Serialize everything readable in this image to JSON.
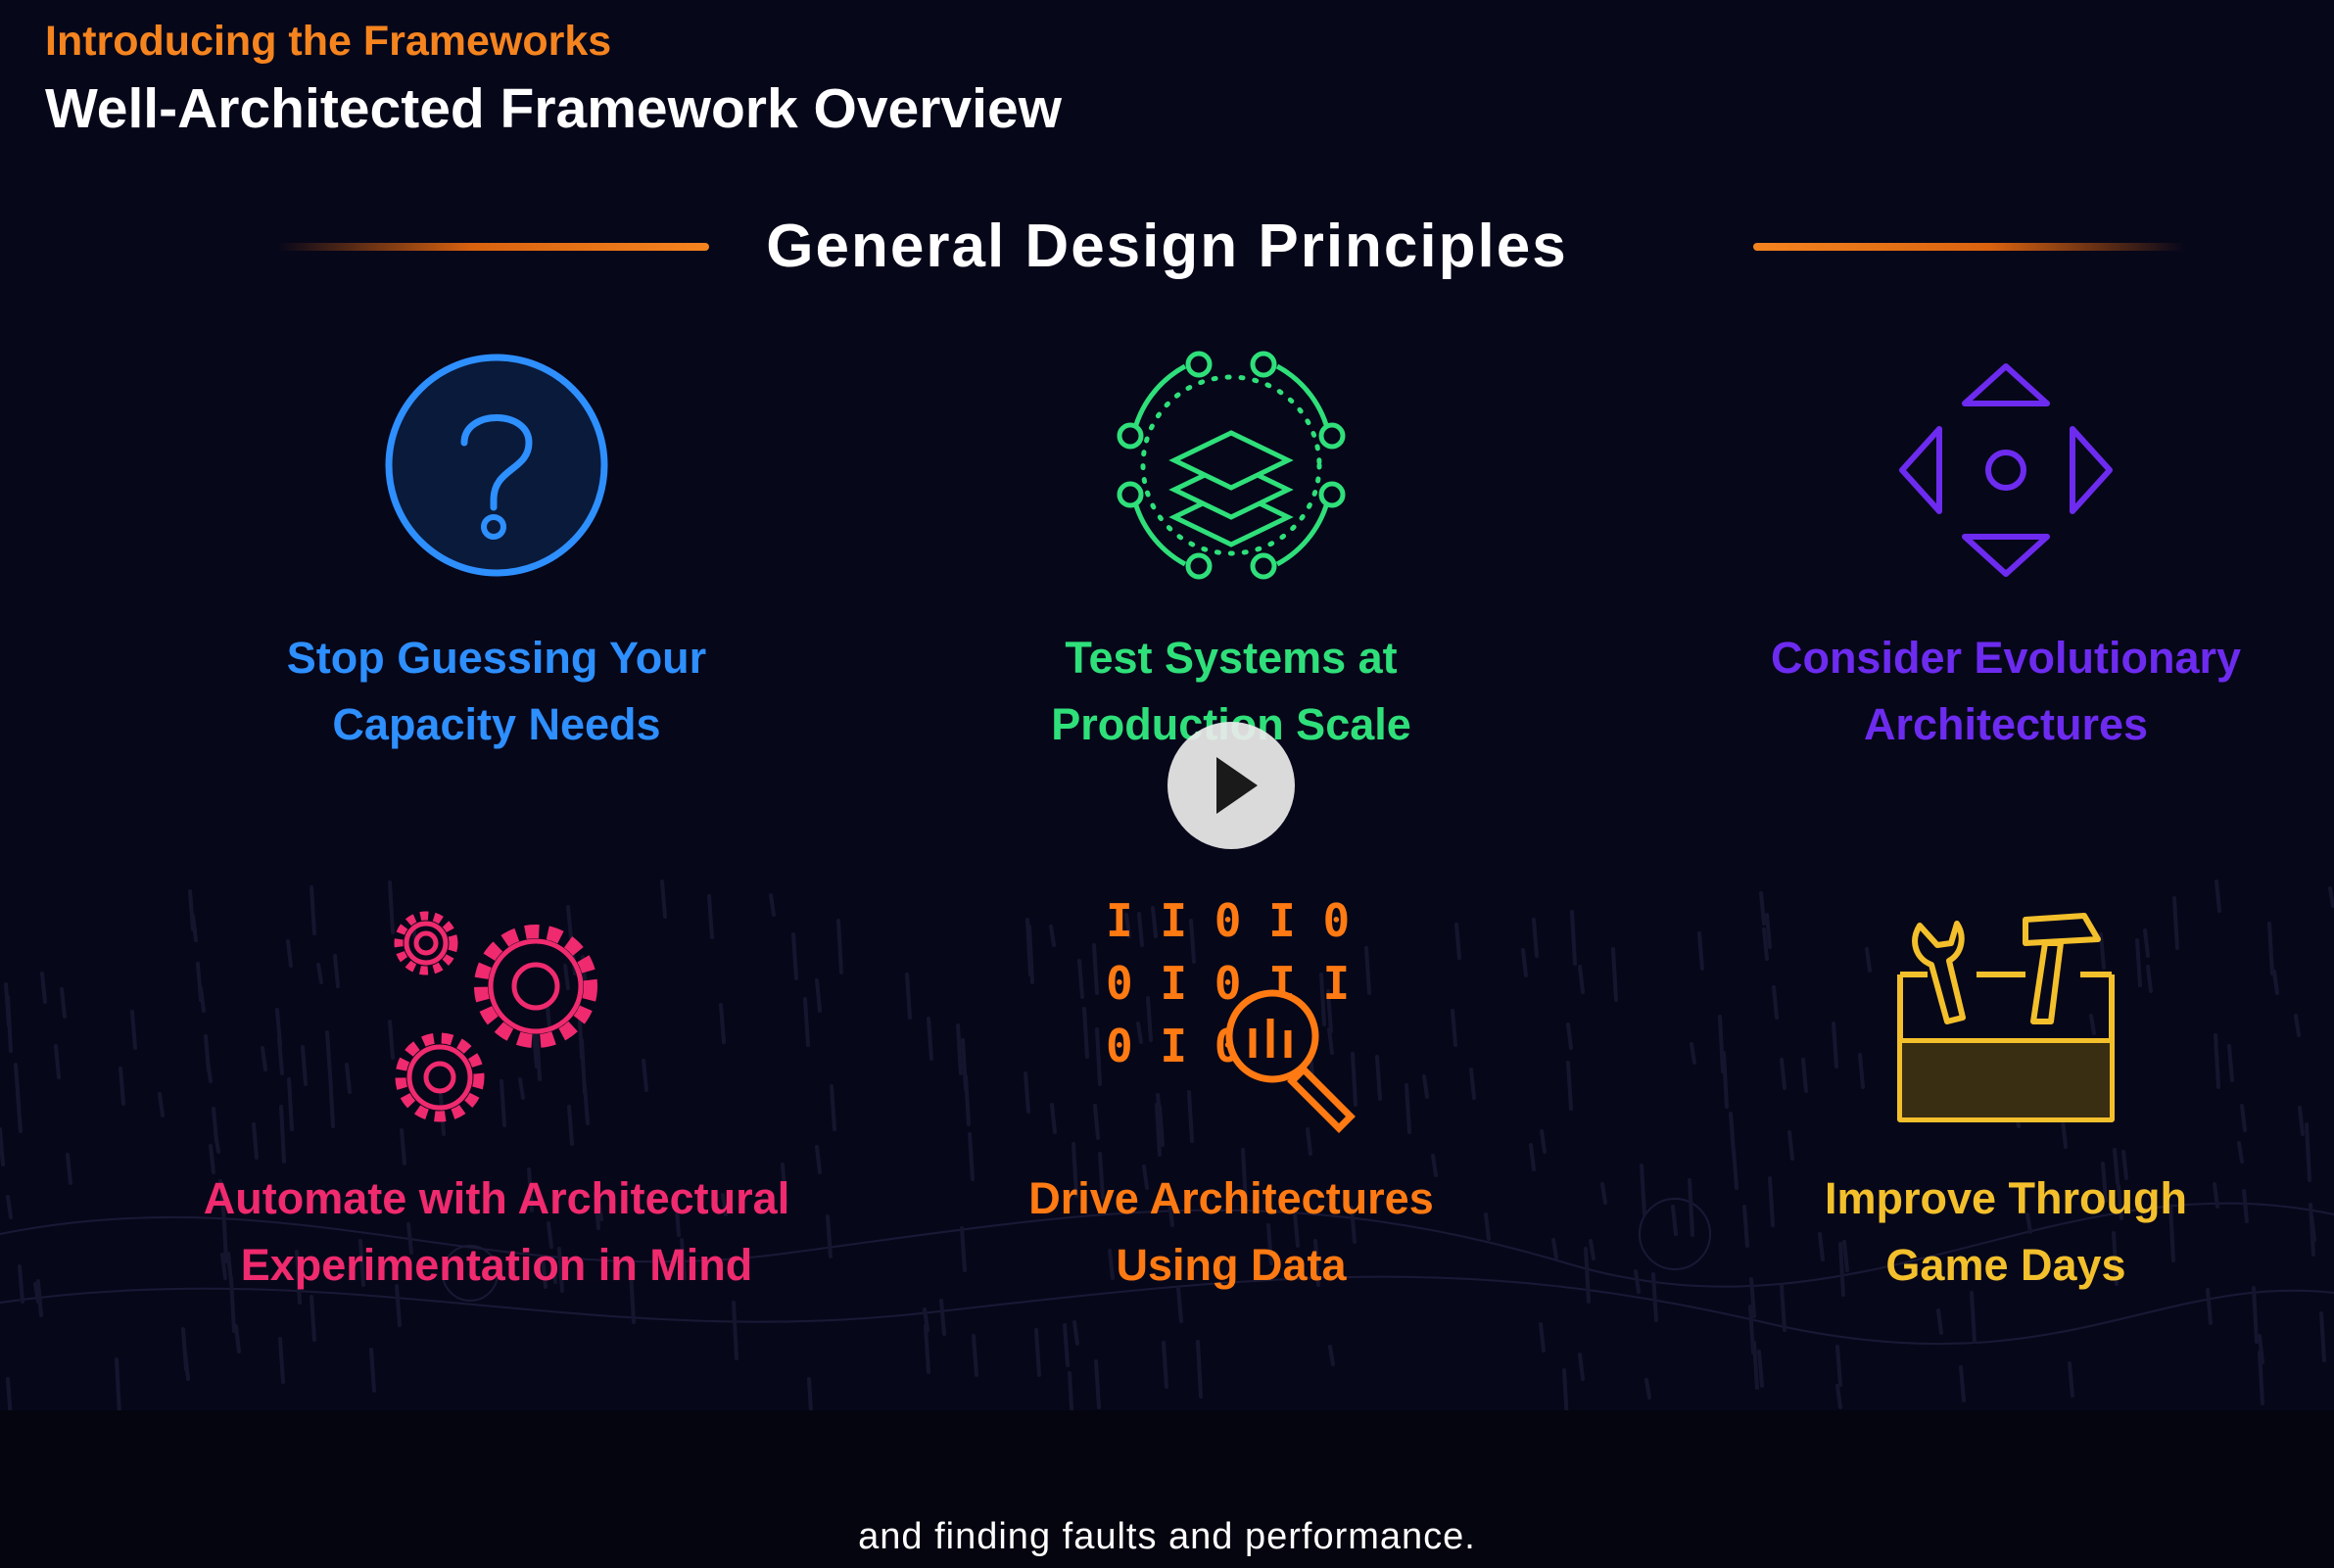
{
  "header": {
    "eyebrow": "Introducing the Frameworks",
    "title": "Well-Architected Framework Overview"
  },
  "section": {
    "title": "General Design Principles"
  },
  "colors": {
    "orange_accent": "#f5841f",
    "blue": "#2e8fff",
    "green": "#2fe07a",
    "purple": "#6d2bf0",
    "pink": "#f02a6e",
    "orange": "#ff7a12",
    "gold": "#f3c02c",
    "background": "#07071a"
  },
  "principles": [
    {
      "icon": "question-mark-icon",
      "lines": [
        "Stop Guessing Your",
        "Capacity Needs"
      ],
      "color": "#2e8fff"
    },
    {
      "icon": "layers-network-icon",
      "lines": [
        "Test Systems at",
        "Production Scale"
      ],
      "color": "#2fe07a"
    },
    {
      "icon": "directional-arrows-icon",
      "lines": [
        "Consider Evolutionary",
        "Architectures"
      ],
      "color": "#6d2bf0"
    },
    {
      "icon": "gears-icon",
      "lines": [
        "Automate with Architectural",
        "Experimentation in Mind"
      ],
      "color": "#f02a6e"
    },
    {
      "icon": "binary-magnifier-icon",
      "lines": [
        "Drive Architectures",
        "Using Data"
      ],
      "color": "#ff7a12"
    },
    {
      "icon": "toolbox-icon",
      "lines": [
        "Improve Through",
        "Game Days"
      ],
      "color": "#f3c02c"
    }
  ],
  "binary_rows": [
    "I I 0 I 0",
    "0 I 0 I I",
    "0 I 0"
  ],
  "video": {
    "play_icon": "play-icon",
    "caption": "and finding faults and performance."
  }
}
